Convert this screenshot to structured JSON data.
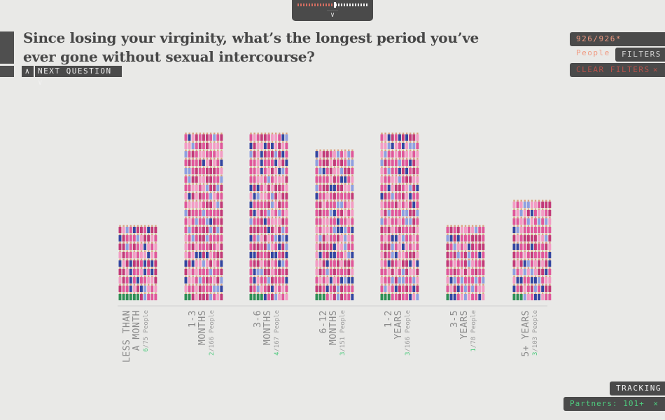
{
  "question": "Since losing your virginity, what’s the longest period you’ve ever gone without sexual intercourse?",
  "nav": {
    "next_label": "NEXT QUESTION"
  },
  "people_count": "926/926* People",
  "filters_label": "FILTERS",
  "clear_filters_label": "CLEAR FILTERS",
  "tracking_label": "TRACKING",
  "partners_label": "Partners: 101+",
  "colors": {
    "pink": "#e0579a",
    "light_pink": "#f39bc4",
    "magenta": "#c23a78",
    "blue": "#3245a0",
    "light_blue": "#8e9fe0",
    "green": "#2e8f55",
    "count_green": "#4ecb7e",
    "accent": "#e9927d"
  },
  "chart_data": {
    "type": "bar",
    "categories": [
      "LESS THAN A MONTH",
      "1-3 MONTHS",
      "3-6 MONTHS",
      "6-12 MONTHS",
      "1-2 YEARS",
      "3-5 YEARS",
      "5+ YEARS"
    ],
    "tick_lines": [
      [
        "LESS THAN",
        "A MONTH"
      ],
      [
        "1-3",
        "MONTHS"
      ],
      [
        "3-6",
        "MONTHS"
      ],
      [
        "6-12",
        "MONTHS"
      ],
      [
        "1-2",
        "YEARS"
      ],
      [
        "3-5",
        "YEARS"
      ],
      [
        "5+ YEARS"
      ]
    ],
    "values": [
      75,
      166,
      167,
      151,
      166,
      78,
      103
    ],
    "highlighted": [
      6,
      2,
      4,
      3,
      3,
      1,
      3
    ],
    "count_unit": "People",
    "ylim": [
      0,
      170
    ]
  }
}
